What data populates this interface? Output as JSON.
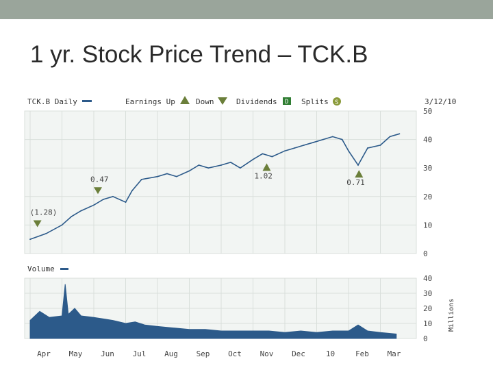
{
  "slide": {
    "title": "1 yr. Stock Price Trend – TCK.B"
  },
  "colors": {
    "series": "#2c5a8a",
    "plot_bg": "#f2f5f3",
    "grid": "#d9dfdb",
    "up_marker": "#6b7f3a",
    "down_marker": "#6b7f3a",
    "dividend_marker": "#2f7d32",
    "split_marker": "#8a9a3a",
    "text": "#333333",
    "axis_text": "#444444"
  },
  "chart_data": [
    {
      "type": "line",
      "title": "TCK.B Daily",
      "date_label": "3/12/10",
      "legend": {
        "series_label": "TCK.B Daily",
        "earnings_up": "Earnings Up",
        "down": "Down",
        "dividends": "Dividends",
        "dividends_badge": "D",
        "splits": "Splits",
        "splits_badge": "S"
      },
      "ylim": [
        0,
        50
      ],
      "yticks": [
        "0",
        "10",
        "20",
        "30",
        "40",
        "50"
      ],
      "xticks": [
        "Apr",
        "May",
        "Jun",
        "Jul",
        "Aug",
        "Sep",
        "Oct",
        "Nov",
        "Dec",
        "10",
        "Feb",
        "Mar"
      ],
      "price_series": {
        "name": "TCK.B",
        "x_months": [
          0,
          0.5,
          1,
          1.3,
          1.6,
          2,
          2.3,
          2.6,
          3,
          3.2,
          3.5,
          4,
          4.3,
          4.6,
          5,
          5.3,
          5.6,
          6,
          6.3,
          6.6,
          7,
          7.3,
          7.6,
          8,
          8.3,
          8.6,
          8.9,
          9.2,
          9.5,
          9.8,
          10,
          10.3,
          10.6,
          11,
          11.3,
          11.6
        ],
        "values": [
          5,
          7,
          10,
          13,
          15,
          17,
          19,
          20,
          18,
          22,
          26,
          27,
          28,
          27,
          29,
          31,
          30,
          31,
          32,
          30,
          33,
          35,
          34,
          36,
          37,
          38,
          39,
          40,
          41,
          40,
          36,
          31,
          37,
          38,
          41,
          42
        ]
      },
      "annotations": [
        {
          "label": "(1.28)",
          "kind": "earnings-down",
          "x_month": 0.1
        },
        {
          "label": "0.47",
          "kind": "earnings-down",
          "x_month": 2.0
        },
        {
          "label": "1.02",
          "kind": "earnings-up",
          "x_month": 7.3
        },
        {
          "label": "0.71",
          "kind": "earnings-up",
          "x_month": 10.2
        }
      ]
    },
    {
      "type": "area",
      "title": "Volume",
      "legend_label": "Volume",
      "units_label": "Millions",
      "ylim": [
        0,
        40
      ],
      "yticks": [
        "0",
        "10",
        "20",
        "30",
        "40"
      ],
      "xticks": [
        "Apr",
        "May",
        "Jun",
        "Jul",
        "Aug",
        "Sep",
        "Oct",
        "Nov",
        "Dec",
        "10",
        "Feb",
        "Mar"
      ],
      "x_months": [
        0,
        0.3,
        0.6,
        1,
        1.1,
        1.2,
        1.4,
        1.6,
        2,
        2.3,
        2.6,
        3,
        3.3,
        3.6,
        4,
        4.5,
        5,
        5.5,
        6,
        6.5,
        7,
        7.5,
        8,
        8.5,
        9,
        9.5,
        10,
        10.3,
        10.6,
        11,
        11.5
      ],
      "values": [
        12,
        18,
        14,
        15,
        36,
        16,
        20,
        15,
        14,
        13,
        12,
        10,
        11,
        9,
        8,
        7,
        6,
        6,
        5,
        5,
        5,
        5,
        4,
        5,
        4,
        5,
        5,
        9,
        5,
        4,
        3
      ]
    }
  ]
}
